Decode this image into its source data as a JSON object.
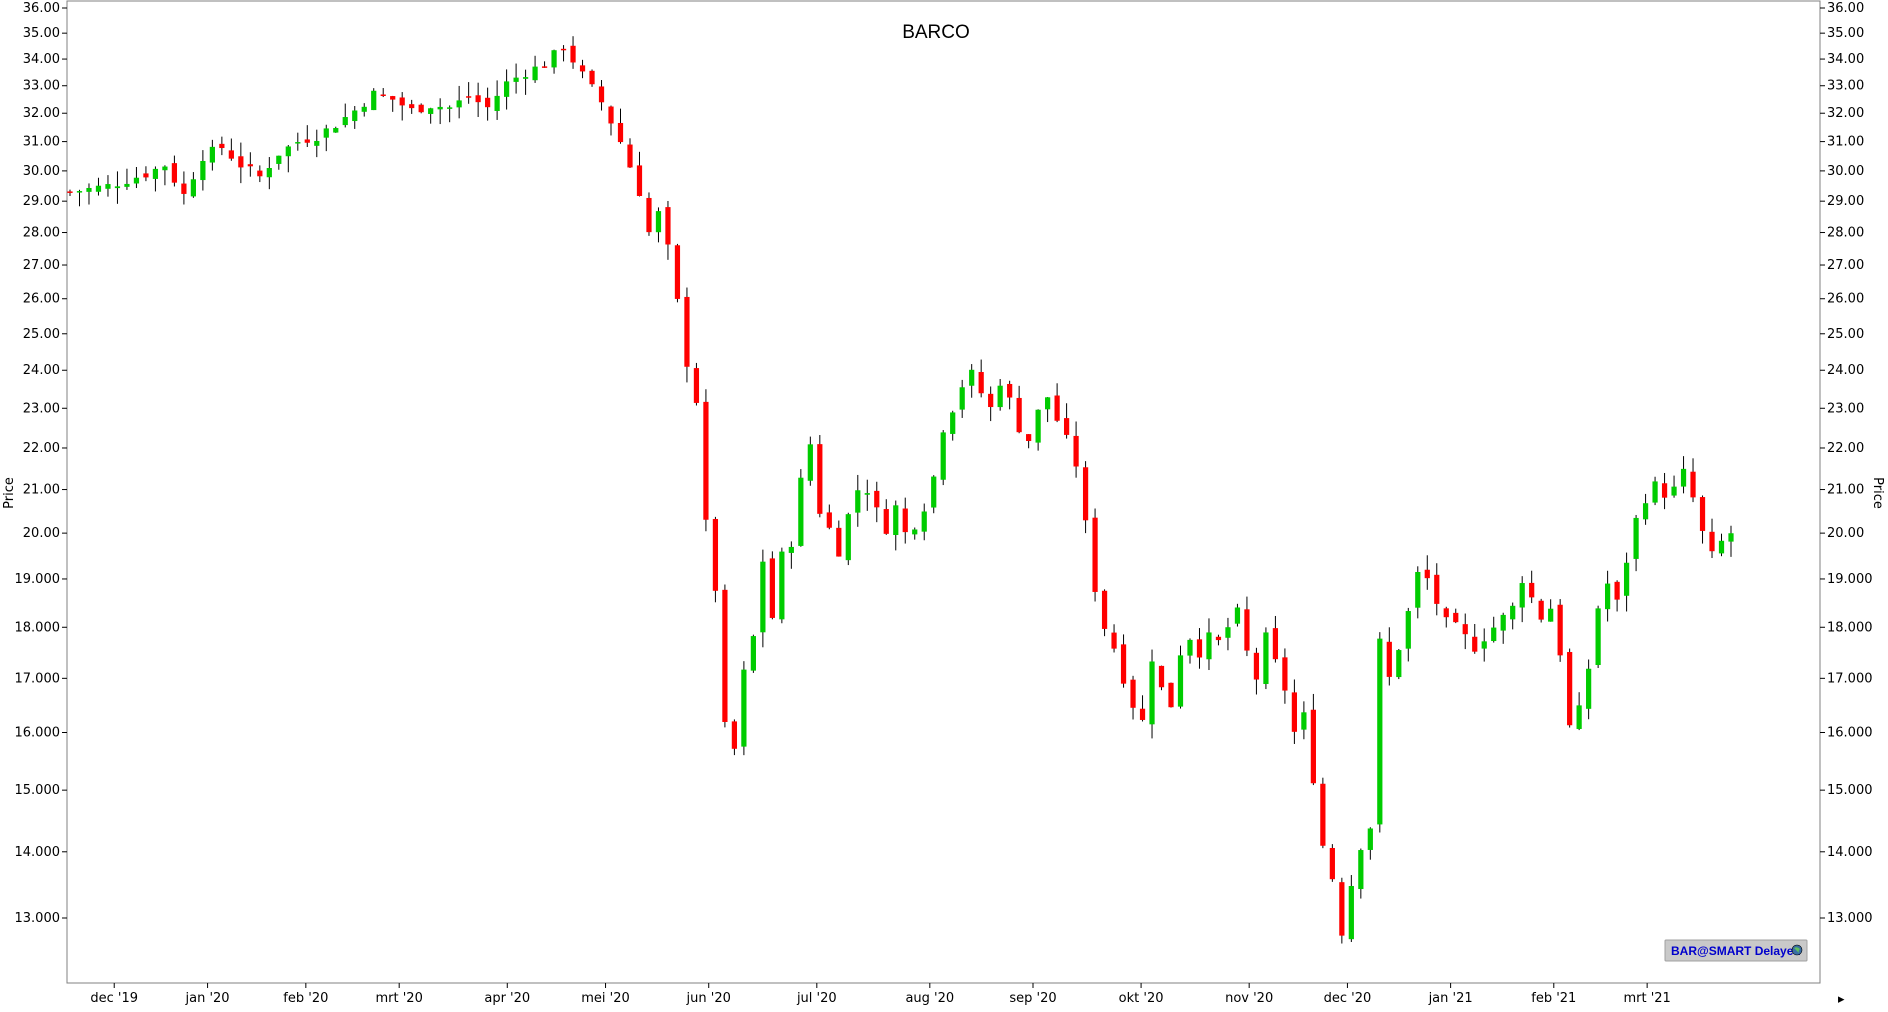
{
  "chart_data": {
    "type": "candlestick",
    "title": "BARCO",
    "ylabel_left": "Price",
    "ylabel_right": "Price",
    "y_scale": "log",
    "ylim": [
      12.3,
      36.0
    ],
    "grid": false,
    "y_ticks": [
      "36.00",
      "35.00",
      "34.00",
      "33.00",
      "32.00",
      "31.00",
      "30.00",
      "29.00",
      "28.00",
      "27.00",
      "26.00",
      "25.00",
      "24.00",
      "23.00",
      "22.00",
      "21.00",
      "20.00",
      "19.000",
      "18.000",
      "17.000",
      "16.000",
      "15.000",
      "14.000",
      "13.000"
    ],
    "x_ticks": [
      "dec '19",
      "jan '20",
      "feb '20",
      "mrt '20",
      "apr '20",
      "mei '20",
      "jun '20",
      "jul '20",
      "aug '20",
      "sep '20",
      "okt '20",
      "nov '20",
      "dec '20",
      "jan '21",
      "feb '21",
      "mrt '21"
    ],
    "colors": {
      "up": "#00cc00",
      "down": "#ff0000",
      "wick": "#000000",
      "frame": "#808080"
    },
    "path": [
      [
        0,
        29.3
      ],
      [
        4,
        29.5
      ],
      [
        8,
        29.9
      ],
      [
        10,
        30.2
      ],
      [
        12,
        29.2
      ],
      [
        14,
        30.5
      ],
      [
        16,
        30.8
      ],
      [
        18,
        30.2
      ],
      [
        20,
        29.8
      ],
      [
        22,
        30.6
      ],
      [
        24,
        31.0
      ],
      [
        26,
        31.2
      ],
      [
        28,
        31.6
      ],
      [
        30,
        32.1
      ],
      [
        32,
        32.7
      ],
      [
        34,
        32.5
      ],
      [
        36,
        32.1
      ],
      [
        38,
        32.3
      ],
      [
        40,
        32.2
      ],
      [
        42,
        32.6
      ],
      [
        44,
        32.2
      ],
      [
        46,
        33.1
      ],
      [
        48,
        33.5
      ],
      [
        50,
        33.8
      ],
      [
        52,
        34.5
      ],
      [
        54,
        33.4
      ],
      [
        56,
        32.4
      ],
      [
        58,
        31.0
      ],
      [
        60,
        29.3
      ],
      [
        61,
        28.0
      ],
      [
        62,
        28.6
      ],
      [
        63,
        27.5
      ],
      [
        64,
        25.9
      ],
      [
        65,
        24.2
      ],
      [
        66,
        23.2
      ],
      [
        67,
        20.2
      ],
      [
        68,
        18.8
      ],
      [
        69,
        16.1
      ],
      [
        70,
        15.7
      ],
      [
        71,
        17.1
      ],
      [
        72,
        17.8
      ],
      [
        73,
        19.4
      ],
      [
        74,
        18.2
      ],
      [
        75,
        19.5
      ],
      [
        76,
        19.8
      ],
      [
        77,
        21.2
      ],
      [
        78,
        22.1
      ],
      [
        79,
        20.5
      ],
      [
        80,
        20.1
      ],
      [
        81,
        19.6
      ],
      [
        82,
        20.4
      ],
      [
        83,
        21.0
      ],
      [
        84,
        21.0
      ],
      [
        85,
        20.5
      ],
      [
        86,
        20.1
      ],
      [
        87,
        20.6
      ],
      [
        88,
        20.0
      ],
      [
        89,
        20.2
      ],
      [
        90,
        20.6
      ],
      [
        91,
        21.3
      ],
      [
        92,
        22.5
      ],
      [
        93,
        23.0
      ],
      [
        94,
        23.6
      ],
      [
        95,
        23.9
      ],
      [
        96,
        23.4
      ],
      [
        97,
        23.0
      ],
      [
        98,
        23.7
      ],
      [
        99,
        23.2
      ],
      [
        100,
        22.5
      ],
      [
        101,
        22.2
      ],
      [
        102,
        22.9
      ],
      [
        103,
        23.3
      ],
      [
        104,
        22.7
      ],
      [
        105,
        22.2
      ],
      [
        106,
        21.6
      ],
      [
        107,
        20.2
      ],
      [
        108,
        18.8
      ],
      [
        109,
        18.0
      ],
      [
        110,
        17.6
      ],
      [
        111,
        17.0
      ],
      [
        112,
        16.5
      ],
      [
        113,
        16.2
      ],
      [
        114,
        17.4
      ],
      [
        115,
        16.8
      ],
      [
        116,
        16.5
      ],
      [
        117,
        17.5
      ],
      [
        118,
        17.8
      ],
      [
        119,
        17.5
      ],
      [
        120,
        17.8
      ],
      [
        121,
        17.7
      ],
      [
        122,
        18.0
      ],
      [
        123,
        18.3
      ],
      [
        124,
        17.5
      ],
      [
        125,
        17.0
      ],
      [
        126,
        17.8
      ],
      [
        127,
        17.3
      ],
      [
        128,
        16.8
      ],
      [
        129,
        16.0
      ],
      [
        130,
        16.3
      ],
      [
        131,
        15.2
      ],
      [
        132,
        14.1
      ],
      [
        133,
        13.6
      ],
      [
        134,
        12.8
      ],
      [
        135,
        13.5
      ],
      [
        136,
        14.1
      ],
      [
        137,
        14.4
      ],
      [
        138,
        17.7
      ],
      [
        139,
        17.0
      ],
      [
        140,
        17.6
      ],
      [
        141,
        18.3
      ],
      [
        142,
        19.1
      ],
      [
        143,
        19.0
      ],
      [
        144,
        18.5
      ],
      [
        145,
        18.1
      ],
      [
        146,
        18.0
      ],
      [
        147,
        17.8
      ],
      [
        148,
        17.6
      ],
      [
        149,
        17.8
      ],
      [
        150,
        18.0
      ],
      [
        151,
        18.2
      ],
      [
        152,
        18.4
      ],
      [
        153,
        19.0
      ],
      [
        154,
        18.6
      ],
      [
        155,
        18.2
      ],
      [
        156,
        18.4
      ],
      [
        157,
        17.5
      ],
      [
        158,
        16.1
      ],
      [
        159,
        16.4
      ],
      [
        160,
        17.2
      ],
      [
        161,
        18.4
      ],
      [
        162,
        18.9
      ],
      [
        163,
        18.5
      ],
      [
        164,
        19.4
      ],
      [
        165,
        20.3
      ],
      [
        166,
        20.8
      ],
      [
        167,
        21.1
      ],
      [
        168,
        20.9
      ],
      [
        169,
        21.0
      ],
      [
        170,
        21.4
      ],
      [
        171,
        20.8
      ],
      [
        172,
        20.0
      ],
      [
        173,
        19.5
      ],
      [
        174,
        19.8
      ],
      [
        175,
        20.0
      ]
    ]
  },
  "badge": {
    "text": "BAR@SMART Delayed",
    "icon": "globe-icon"
  }
}
